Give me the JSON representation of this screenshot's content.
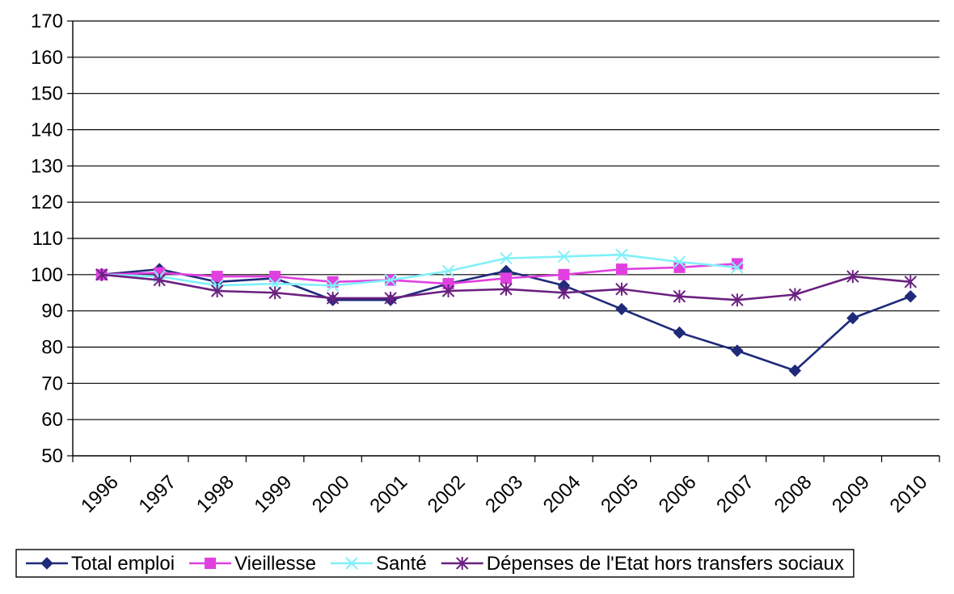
{
  "chart_data": {
    "type": "line",
    "title": "",
    "xlabel": "",
    "ylabel": "",
    "ylim": [
      50,
      170
    ],
    "yticks": [
      50,
      60,
      70,
      80,
      90,
      100,
      110,
      120,
      130,
      140,
      150,
      160,
      170
    ],
    "categories": [
      "1996",
      "1997",
      "1998",
      "1999",
      "2000",
      "2001",
      "2002",
      "2003",
      "2004",
      "2005",
      "2006",
      "2007",
      "2008",
      "2009",
      "2010"
    ],
    "grid": "horizontal",
    "legend_position": "bottom",
    "series": [
      {
        "name": "Total emploi",
        "color": "#1f2a7a",
        "marker": "diamond",
        "values": [
          100,
          101.5,
          98,
          99,
          93,
          93,
          97.5,
          101,
          97,
          90.5,
          84,
          79,
          73.5,
          88,
          94
        ]
      },
      {
        "name": "Vieillesse",
        "color": "#e040e0",
        "marker": "square",
        "values": [
          100,
          100.5,
          99.5,
          99.5,
          98,
          98.5,
          97.5,
          99,
          100,
          101.5,
          102,
          103,
          null,
          null,
          null
        ]
      },
      {
        "name": "Santé",
        "color": "#80f0f8",
        "marker": "x",
        "values": [
          100,
          99.5,
          97,
          97.5,
          97,
          98.5,
          101,
          104.5,
          105,
          105.5,
          103.5,
          102,
          null,
          null,
          null
        ]
      },
      {
        "name": "Dépenses de l'Etat hors transfers sociaux",
        "color": "#6b2080",
        "marker": "star",
        "values": [
          100,
          98.5,
          95.5,
          95,
          93.5,
          93.5,
          95.5,
          96,
          95,
          96,
          94,
          93,
          94.5,
          99.5,
          98
        ]
      }
    ]
  }
}
